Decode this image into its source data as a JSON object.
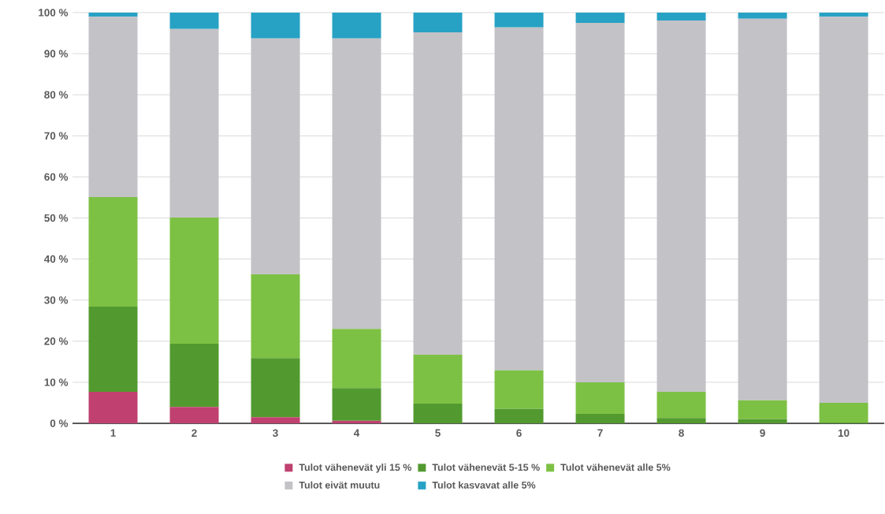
{
  "chart_data": {
    "type": "bar",
    "stacked": true,
    "categories": [
      "1",
      "2",
      "3",
      "4",
      "5",
      "6",
      "7",
      "8",
      "9",
      "10"
    ],
    "series": [
      {
        "name": "Tulot vähenevät yli 15 %",
        "color": "#c0406f",
        "values": [
          7.7,
          4.0,
          1.5,
          0.6,
          0,
          0,
          0,
          0,
          0,
          0
        ]
      },
      {
        "name": "Tulot vähenevät 5-15 %",
        "color": "#529a2f",
        "values": [
          20.7,
          15.4,
          14.4,
          8.0,
          4.8,
          3.5,
          2.3,
          1.3,
          1.0,
          0.2
        ]
      },
      {
        "name": "Tulot vähenevät alle 5%",
        "color": "#7dc144",
        "values": [
          26.7,
          30.7,
          20.4,
          14.4,
          11.9,
          9.4,
          7.7,
          6.4,
          4.6,
          4.8
        ]
      },
      {
        "name": "Tulot eivät muutu",
        "color": "#c3c2c7",
        "values": [
          43.9,
          45.9,
          57.4,
          70.7,
          78.5,
          83.5,
          87.5,
          90.4,
          92.9,
          94.0
        ]
      },
      {
        "name": "Tulot kasvavat alle 5%",
        "color": "#27a2c4",
        "values": [
          1.0,
          4.0,
          6.3,
          6.3,
          4.8,
          3.6,
          2.5,
          1.9,
          1.5,
          1.0
        ]
      }
    ],
    "ylim": [
      0,
      100
    ],
    "yticks": [
      {
        "value": 0,
        "label": "0 %"
      },
      {
        "value": 10,
        "label": "10 %"
      },
      {
        "value": 20,
        "label": "20 %"
      },
      {
        "value": 30,
        "label": "30 %"
      },
      {
        "value": 40,
        "label": "40 %"
      },
      {
        "value": 50,
        "label": "50 %"
      },
      {
        "value": 60,
        "label": "60 %"
      },
      {
        "value": 70,
        "label": "70 %"
      },
      {
        "value": 80,
        "label": "80 %"
      },
      {
        "value": 90,
        "label": "90 %"
      },
      {
        "value": 100,
        "label": "100 %"
      }
    ],
    "grid": "y",
    "legend": "bottom"
  }
}
